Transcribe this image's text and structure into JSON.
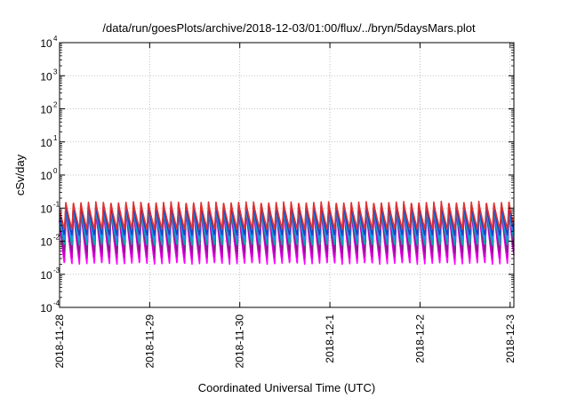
{
  "chart_data": {
    "type": "line",
    "title": "/data/run/goesPlots/archive/2018-12-03/01:00/flux/../bryn/5daysMars.plot",
    "xlabel": "Coordinated Universal Time (UTC)",
    "ylabel": "cSv/day",
    "y_scale": "log",
    "ylim": [
      0.0001,
      10000
    ],
    "y_ticks": [
      {
        "mantissa": "10",
        "exp": "-4"
      },
      {
        "mantissa": "10",
        "exp": "-3"
      },
      {
        "mantissa": "10",
        "exp": "-2"
      },
      {
        "mantissa": "10",
        "exp": "-1"
      },
      {
        "mantissa": "10",
        "exp": "0"
      },
      {
        "mantissa": "10",
        "exp": "1"
      },
      {
        "mantissa": "10",
        "exp": "2"
      },
      {
        "mantissa": "10",
        "exp": "3"
      },
      {
        "mantissa": "10",
        "exp": "4"
      }
    ],
    "xlim": [
      "2018-11-28",
      "2018-12-03 01:00"
    ],
    "x_ticks": [
      "2018-11-28",
      "2018-11-29",
      "2018-11-30",
      "2018-12-1",
      "2018-12-2",
      "2018-12-3"
    ],
    "grid": true,
    "legend": "none",
    "cycles_per_day": 12,
    "series": [
      {
        "color": "#ff00ff",
        "peak": 0.13,
        "trough": 0.002
      },
      {
        "color": "#c800c8",
        "peak": 0.12,
        "trough": 0.003
      },
      {
        "color": "#8b1a8b",
        "peak": 0.11,
        "trough": 0.0045
      },
      {
        "color": "#00aaaa",
        "peak": 0.11,
        "trough": 0.0075
      },
      {
        "color": "#1e90ff",
        "peak": 0.12,
        "trough": 0.011
      },
      {
        "color": "#2040c0",
        "peak": 0.13,
        "trough": 0.015
      },
      {
        "color": "#e03030",
        "peak": 0.16,
        "trough": 0.023
      }
    ]
  }
}
